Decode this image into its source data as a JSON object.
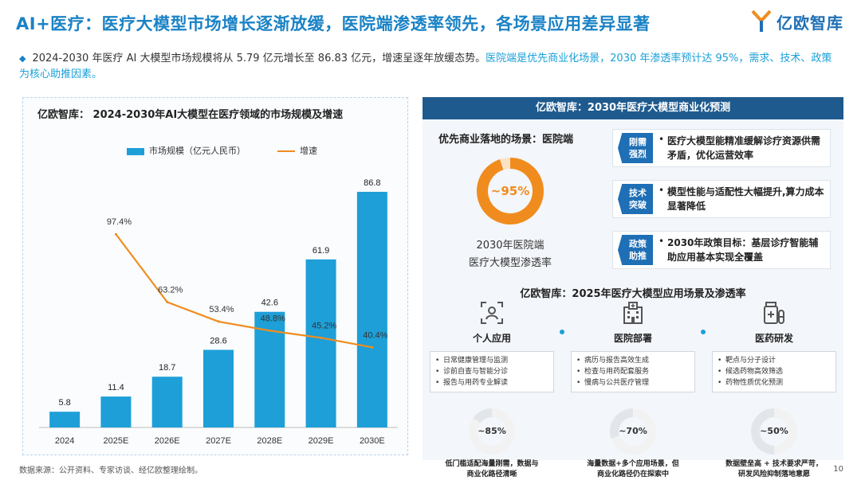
{
  "header": {
    "title": "AI+医疗：医疗大模型市场增长逐渐放缓，医院端渗透率领先，各场景应用差异显著",
    "logo_text": "亿欧智库"
  },
  "summary": {
    "text_main": "2024-2030 年医疗 AI 大模型市场规模将从 5.79 亿元增长至 86.83 亿元，增速呈逐年放缓态势。",
    "text_highlight": "医院端是优先商业化场景，2030 年渗透率预计达 95%，需求、技术、政策为核心助推因素。"
  },
  "chart_panel": {
    "title": "亿欧智库： 2024-2030年AI大模型在医疗领域的市场规模及增速",
    "legend_bar": "市场规模（亿元人民币）",
    "legend_line": "增速"
  },
  "chart_data": {
    "type": "bar",
    "title": "亿欧智库： 2024-2030年AI大模型在医疗领域的市场规模及增速",
    "categories": [
      "2024",
      "2025E",
      "2026E",
      "2027E",
      "2028E",
      "2029E",
      "2030E"
    ],
    "series": [
      {
        "name": "市场规模（亿元人民币）",
        "type": "bar",
        "values": [
          5.8,
          11.4,
          18.7,
          28.6,
          42.6,
          61.9,
          86.8
        ],
        "labels": [
          "5.8",
          "11.4",
          "18.7",
          "28.6",
          "42.6",
          "61.9",
          "86.8"
        ]
      },
      {
        "name": "增速",
        "type": "line",
        "values": [
          null,
          97.4,
          63.2,
          53.4,
          48.8,
          45.2,
          40.4
        ],
        "labels": [
          "",
          "97.4%",
          "63.2%",
          "53.4%",
          "48.8%",
          "45.2%",
          "40.4%"
        ]
      }
    ],
    "ylim": [
      0,
      95
    ],
    "y2lim": [
      0,
      130
    ],
    "colors": {
      "bar": "#1e9fd8",
      "line": "#f08c1e"
    }
  },
  "forecast_panel": {
    "header": "亿欧智库：2030年医疗大模型商业化预测",
    "scene_label": "优先商业落地的场景：医院端",
    "donut_value": "~95%",
    "donut_percent": 95,
    "caption_line1": "2030年医院端",
    "caption_line2": "医疗大模型渗透率",
    "drivers": [
      {
        "tag_line1": "刚需",
        "tag_line2": "强烈",
        "text": "医疗大模型能精准缓解诊疗资源供需矛盾，优化运营效率"
      },
      {
        "tag_line1": "技术",
        "tag_line2": "突破",
        "text": "模型性能与适配性大幅提升,算力成本显著降低"
      },
      {
        "tag_line1": "政策",
        "tag_line2": "助推",
        "text": "2030年政策目标：基层诊疗智能辅助应用基本实现全覆盖"
      }
    ]
  },
  "apps_panel": {
    "header": "亿欧智库：2025年医疗大模型应用场景及渗透率",
    "apps": [
      {
        "name": "个人应用",
        "icon": "person-scan-icon",
        "items": [
          "日常健康管理与监测",
          "诊前自查与智能分诊",
          "报告与用药专业解读"
        ],
        "penetration": "~85%",
        "percent": 85,
        "note_line1": "低门槛适配海量刚需，数据与",
        "note_line2": "商业化路径清晰"
      },
      {
        "name": "医院部署",
        "icon": "hospital-icon",
        "items": [
          "病历与报告高效生成",
          "检查与用药配套服务",
          "慢病与公共医疗管理"
        ],
        "penetration": "~70%",
        "percent": 70,
        "note_line1": "海量数据+多个应用场景，但",
        "note_line2": "商业化路径仍在探索中"
      },
      {
        "name": "医药研发",
        "icon": "medicine-icon",
        "items": [
          "靶点与分子设计",
          "候选药物高效筛选",
          "药物性质优化预测"
        ],
        "penetration": "~50%",
        "percent": 50,
        "note_line1": "数据壁垒高 + 技术要求严苛，",
        "note_line2": "研发风险抑制落地意愿"
      }
    ]
  },
  "footer": {
    "source": "数据来源：公开资料、专家访谈、经亿欧整理绘制。",
    "page": "10"
  }
}
